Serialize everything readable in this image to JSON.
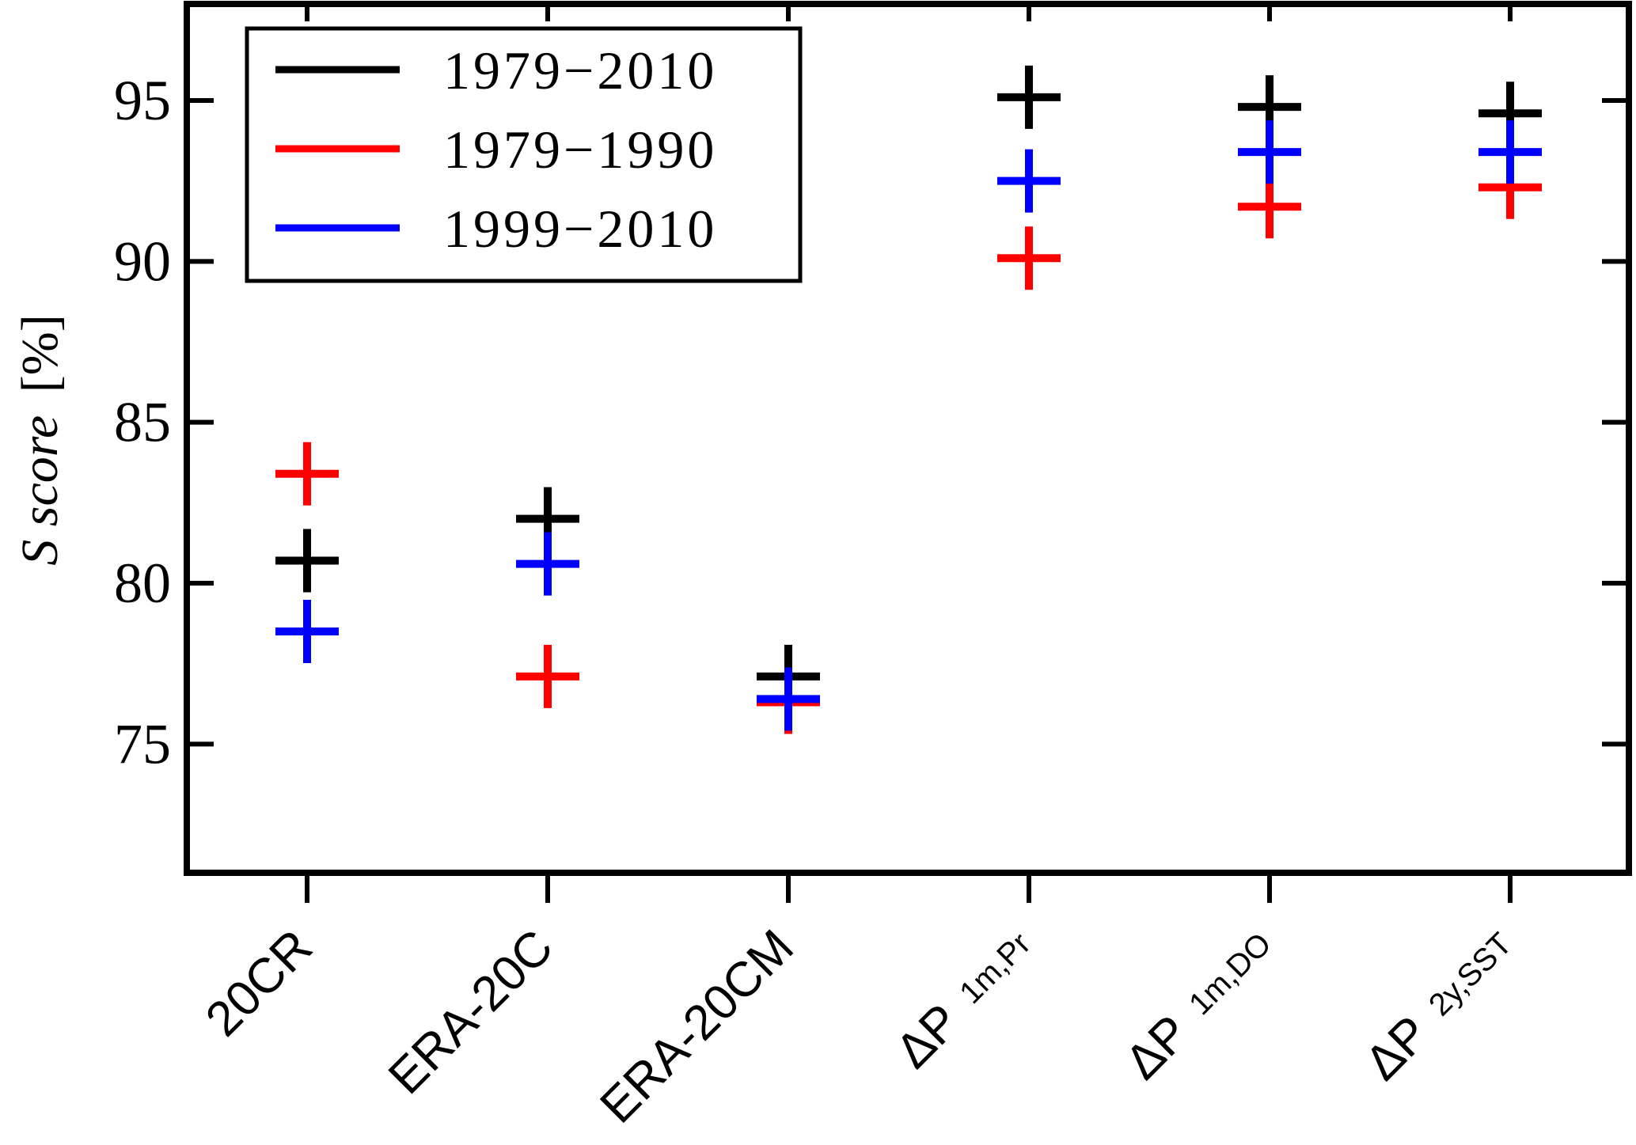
{
  "chart_data": {
    "type": "scatter",
    "marker": "plus",
    "categories": [
      {
        "main": "20CR",
        "sub": ""
      },
      {
        "main": "ERA-20C",
        "sub": ""
      },
      {
        "main": "ERA-20CM",
        "sub": ""
      },
      {
        "main": "ΔP",
        "sub": "1m,Pr"
      },
      {
        "main": "ΔP",
        "sub": "1m,DO"
      },
      {
        "main": "ΔP",
        "sub": "2y,SST"
      }
    ],
    "ylabel": {
      "italic": "S score",
      "unit": "[%]"
    },
    "ylim": [
      71,
      98
    ],
    "yticks": [
      75,
      80,
      85,
      90,
      95
    ],
    "grid": false,
    "legend_position": "top-left",
    "series": [
      {
        "name": "1979−2010",
        "color": "#000000",
        "values": [
          80.7,
          82.0,
          77.1,
          95.1,
          94.8,
          94.6
        ]
      },
      {
        "name": "1979−1990",
        "color": "#ff0000",
        "values": [
          83.4,
          77.1,
          76.3,
          90.1,
          91.7,
          92.3
        ]
      },
      {
        "name": "1999−2010",
        "color": "#0000ff",
        "values": [
          78.5,
          80.6,
          76.4,
          92.5,
          93.4,
          93.4
        ]
      }
    ]
  }
}
